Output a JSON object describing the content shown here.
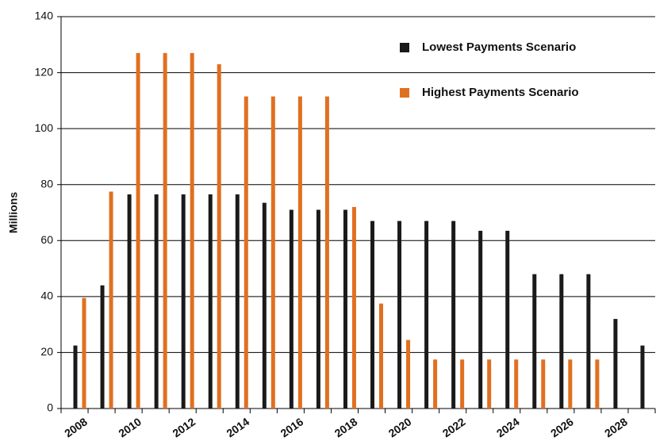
{
  "chart_data": {
    "type": "bar",
    "y_label": "Millions",
    "categories": [
      "2008",
      null,
      "2010",
      null,
      "2012",
      null,
      "2014",
      null,
      "2016",
      null,
      "2018",
      null,
      "2020",
      null,
      "2022",
      null,
      "2024",
      null,
      "2026",
      null,
      "2028",
      null
    ],
    "series": [
      {
        "name": "Lowest Payments Scenario",
        "color": "#1a1a1a",
        "values": [
          22.5,
          44,
          76.5,
          76.5,
          76.5,
          76.5,
          76.5,
          73.5,
          71,
          71,
          71,
          67,
          67,
          67,
          67,
          63.5,
          63.5,
          48,
          48,
          48,
          32,
          22.5
        ]
      },
      {
        "name": "Highest Payments Scenario",
        "color": "#e07020",
        "values": [
          39.5,
          77.5,
          127,
          127,
          127,
          123,
          111.5,
          111.5,
          111.5,
          111.5,
          72,
          37.5,
          24.5,
          17.5,
          17.5,
          17.5,
          17.5,
          17.5,
          17.5,
          17.5,
          null,
          null
        ]
      }
    ],
    "ylim": [
      0,
      140
    ],
    "yticks": [
      0,
      20,
      40,
      60,
      80,
      100,
      120,
      140
    ],
    "grid": true,
    "legend": "upper right"
  }
}
